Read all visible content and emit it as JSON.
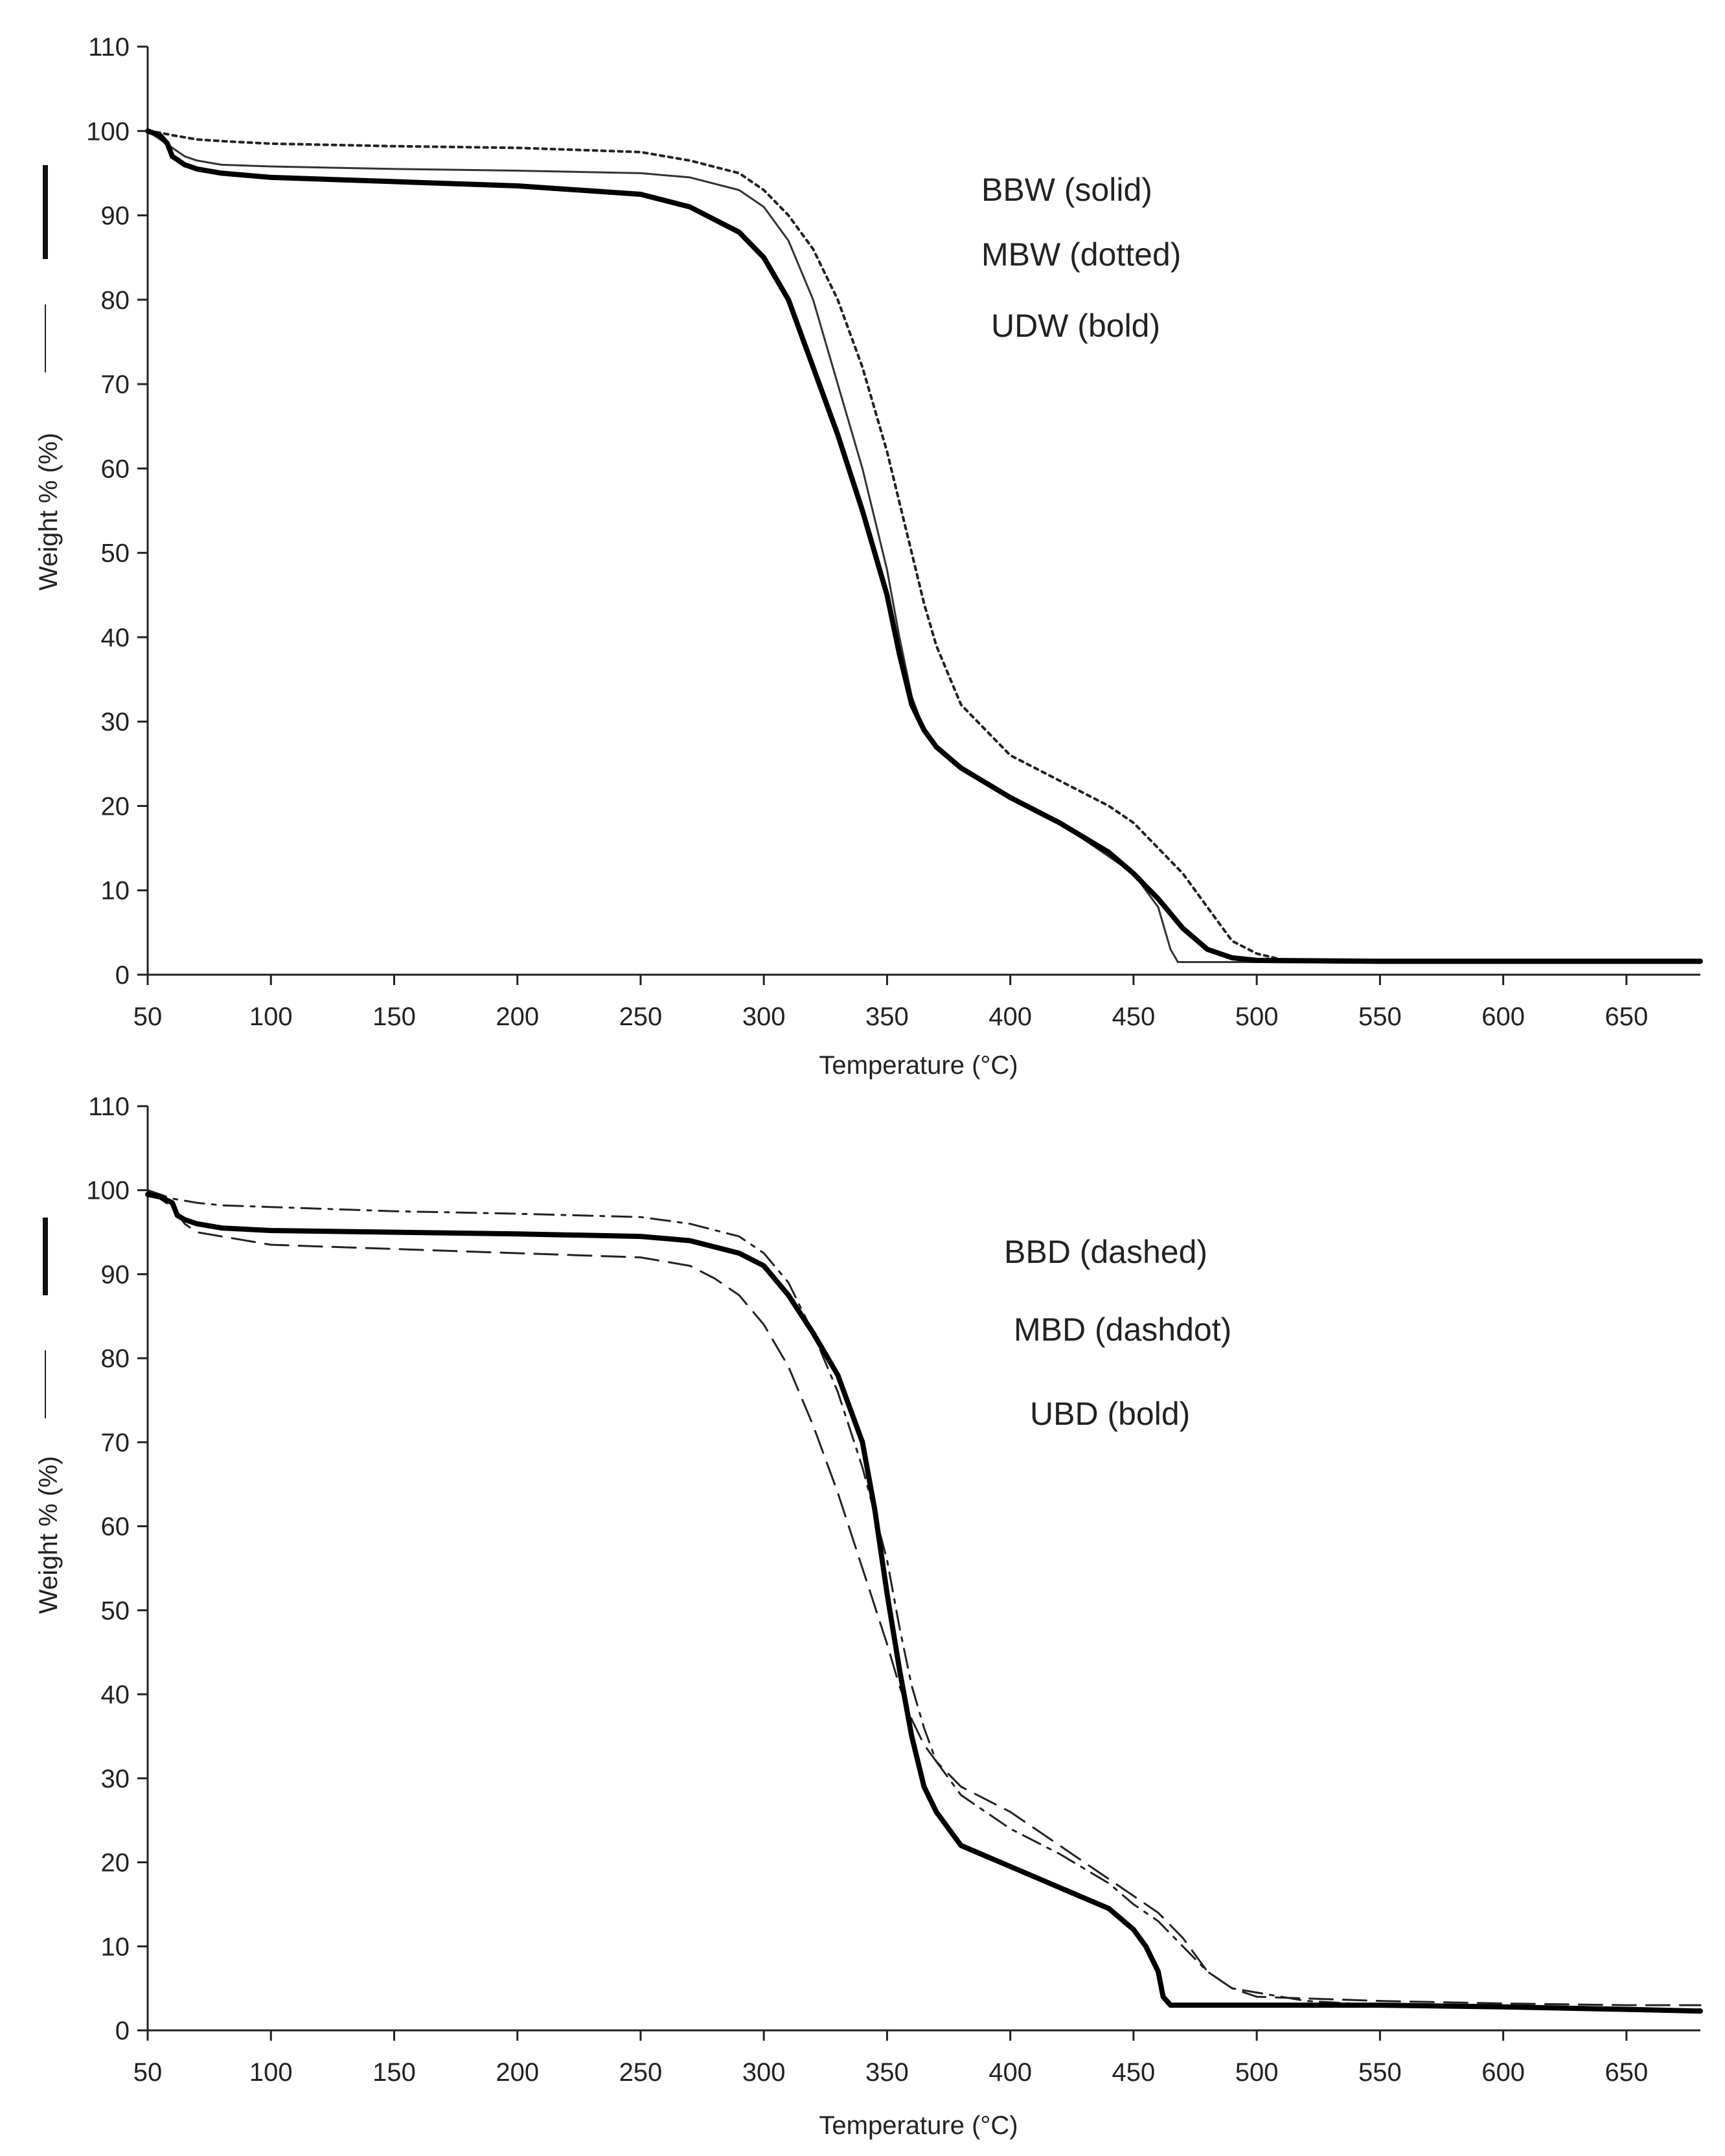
{
  "chart_data": [
    {
      "type": "line",
      "title": "",
      "xlabel": "Temperature (°C)",
      "ylabel": "Weight % (%)",
      "xlim": [
        50,
        680
      ],
      "ylim": [
        0,
        110
      ],
      "xticks": [
        50,
        100,
        150,
        200,
        250,
        300,
        350,
        400,
        450,
        500,
        550,
        600,
        650
      ],
      "yticks": [
        0,
        10,
        20,
        30,
        40,
        50,
        60,
        70,
        80,
        90,
        100,
        110
      ],
      "grid": false,
      "legend_position": "top-right",
      "legend": [
        "BBW (solid)",
        "MBW (dotted)",
        "UDW (bold)"
      ],
      "series": [
        {
          "name": "BBW (solid)",
          "style": "solid",
          "x": [
            50,
            55,
            60,
            65,
            70,
            80,
            100,
            150,
            200,
            250,
            270,
            290,
            300,
            310,
            320,
            330,
            340,
            350,
            355,
            360,
            365,
            370,
            380,
            400,
            420,
            440,
            450,
            460,
            465,
            468,
            470,
            500,
            550,
            600,
            650,
            680
          ],
          "y": [
            100,
            99,
            98,
            97,
            96.5,
            96,
            95.8,
            95.5,
            95.3,
            95,
            94.5,
            93,
            91,
            87,
            80,
            70,
            60,
            48,
            40,
            33,
            29,
            27,
            24.5,
            21,
            18,
            14,
            12,
            8,
            3,
            1.5,
            1.5,
            1.5,
            1.4,
            1.4,
            1.4,
            1.4
          ]
        },
        {
          "name": "MBW (dotted)",
          "style": "dotted",
          "x": [
            50,
            55,
            60,
            70,
            80,
            100,
            150,
            200,
            250,
            270,
            290,
            300,
            310,
            320,
            330,
            340,
            350,
            360,
            365,
            370,
            380,
            400,
            420,
            440,
            450,
            460,
            470,
            480,
            490,
            500,
            510,
            550,
            600,
            650,
            680
          ],
          "y": [
            100,
            99.8,
            99.5,
            99,
            98.8,
            98.5,
            98.2,
            98,
            97.5,
            96.5,
            95,
            93,
            90,
            86,
            80,
            72,
            62,
            50,
            44,
            39,
            32,
            26,
            23,
            20,
            18,
            15,
            12,
            8,
            4,
            2.5,
            1.8,
            1.5,
            1.5,
            1.5,
            1.5
          ]
        },
        {
          "name": "UDW (bold)",
          "style": "bold",
          "x": [
            50,
            55,
            58,
            60,
            65,
            70,
            80,
            100,
            150,
            200,
            250,
            270,
            290,
            300,
            310,
            320,
            330,
            340,
            350,
            355,
            360,
            365,
            370,
            380,
            400,
            420,
            440,
            450,
            460,
            470,
            480,
            490,
            500,
            550,
            600,
            650,
            680
          ],
          "y": [
            100,
            99.5,
            98.5,
            97,
            96,
            95.5,
            95,
            94.5,
            94,
            93.5,
            92.5,
            91,
            88,
            85,
            80,
            72,
            64,
            55,
            45,
            38,
            32,
            29,
            27,
            24.5,
            21,
            18,
            14.5,
            12,
            9,
            5.5,
            3,
            2,
            1.7,
            1.6,
            1.6,
            1.6,
            1.6
          ]
        }
      ]
    },
    {
      "type": "line",
      "title": "",
      "xlabel": "Temperature (°C)",
      "ylabel": "Weight % (%)",
      "xlim": [
        50,
        680
      ],
      "ylim": [
        0,
        110
      ],
      "xticks": [
        50,
        100,
        150,
        200,
        250,
        300,
        350,
        400,
        450,
        500,
        550,
        600,
        650
      ],
      "yticks": [
        0,
        10,
        20,
        30,
        40,
        50,
        60,
        70,
        80,
        90,
        100,
        110
      ],
      "grid": false,
      "legend_position": "top-right",
      "legend": [
        "BBD (dashed)",
        "MBD (dashdot)",
        "UBD (bold)"
      ],
      "series": [
        {
          "name": "BBD (dashed)",
          "style": "dashed",
          "x": [
            50,
            55,
            60,
            65,
            70,
            80,
            100,
            150,
            200,
            250,
            270,
            280,
            290,
            300,
            310,
            320,
            330,
            340,
            350,
            355,
            360,
            365,
            370,
            380,
            400,
            420,
            440,
            450,
            460,
            470,
            480,
            490,
            500,
            520,
            550,
            600,
            650,
            680
          ],
          "y": [
            100,
            99,
            98,
            96,
            95,
            94.5,
            93.5,
            93,
            92.5,
            92,
            91,
            89.5,
            87.5,
            84,
            79,
            72,
            64,
            55,
            46,
            41,
            37,
            34,
            32,
            29,
            26,
            22,
            18,
            16,
            14,
            11,
            7,
            5,
            4,
            3.8,
            3.5,
            3.2,
            3,
            3
          ]
        },
        {
          "name": "MBD (dashdot)",
          "style": "dashdot",
          "x": [
            50,
            55,
            60,
            70,
            80,
            100,
            150,
            200,
            250,
            270,
            290,
            300,
            310,
            320,
            330,
            340,
            350,
            355,
            360,
            365,
            370,
            380,
            400,
            420,
            440,
            450,
            460,
            470,
            480,
            490,
            500,
            520,
            550,
            600,
            650,
            680
          ],
          "y": [
            100,
            99.5,
            99,
            98.5,
            98.2,
            98,
            97.5,
            97.2,
            96.8,
            96,
            94.5,
            92.5,
            89,
            83,
            76,
            67,
            56,
            48,
            41,
            36,
            32,
            28,
            24,
            21,
            17.5,
            15,
            13,
            10,
            7,
            5,
            4.5,
            3.5,
            3,
            2.8,
            2.5,
            2.5
          ]
        },
        {
          "name": "UBD (bold)",
          "style": "bold",
          "x": [
            50,
            55,
            60,
            62,
            65,
            70,
            80,
            100,
            150,
            200,
            250,
            270,
            290,
            300,
            310,
            320,
            330,
            340,
            345,
            350,
            355,
            360,
            365,
            370,
            380,
            400,
            420,
            440,
            450,
            455,
            460,
            462,
            465,
            470,
            500,
            550,
            600,
            650,
            680
          ],
          "y": [
            99.5,
            99.2,
            98.5,
            97,
            96.5,
            96,
            95.5,
            95.2,
            95,
            94.8,
            94.5,
            94,
            92.5,
            91,
            87.5,
            83,
            78,
            70,
            62,
            52,
            43,
            35,
            29,
            26,
            22,
            19.5,
            17,
            14.5,
            12,
            10,
            7,
            4,
            3,
            3,
            3,
            3,
            2.8,
            2.5,
            2.3
          ]
        }
      ]
    }
  ]
}
